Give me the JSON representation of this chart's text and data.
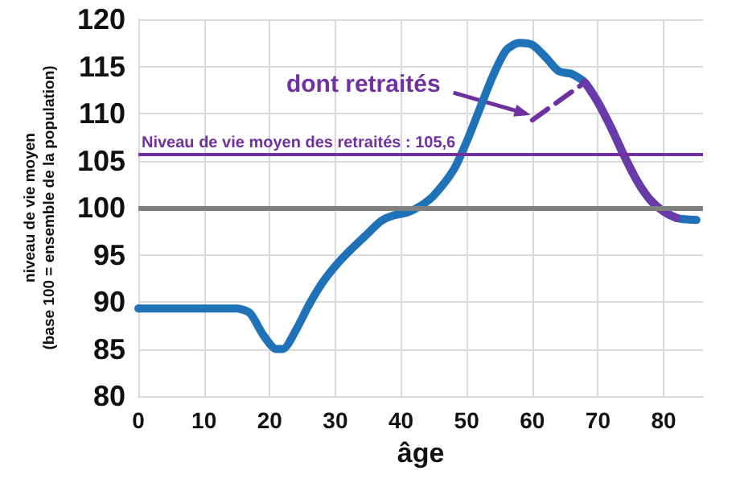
{
  "chart_data": {
    "type": "line",
    "xlabel": "âge",
    "ylabel": "niveau de vie moyen\n(base 100 = ensemble de la population)",
    "xlim": [
      0,
      86
    ],
    "xticks": [
      0,
      10,
      20,
      30,
      40,
      50,
      60,
      70,
      80
    ],
    "ylim": [
      80,
      120
    ],
    "yticks": [
      80,
      85,
      90,
      95,
      100,
      105,
      110,
      115,
      120
    ],
    "grid": true,
    "marker": "none",
    "series": [
      {
        "color": "#1f72b8",
        "line_style": "solid",
        "x": [
          0,
          5,
          10,
          15,
          17,
          19,
          21,
          22,
          24,
          26,
          28,
          30,
          32,
          35,
          37,
          39,
          41,
          43,
          45,
          48,
          50,
          52,
          54,
          56,
          58,
          60,
          62,
          64,
          66,
          68,
          70,
          72,
          74,
          76,
          78,
          80,
          82,
          85
        ],
        "values": [
          89.3,
          89.3,
          89.3,
          89.3,
          88.8,
          86.5,
          85,
          85,
          87,
          89.7,
          92,
          93.8,
          95.3,
          97.3,
          98.6,
          99.2,
          99.5,
          100.2,
          101.3,
          104,
          107,
          110.5,
          114,
          116.7,
          117.5,
          117.3,
          116,
          114.5,
          114.2,
          113.3,
          111.2,
          108.5,
          105.5,
          102.8,
          100.8,
          99.6,
          98.9,
          98.7
        ]
      },
      {
        "color": "#7030a0",
        "line_style": "dashed",
        "x": [
          60,
          68
        ],
        "values": [
          109.3,
          113.3
        ]
      },
      {
        "color": "#6a3aa8",
        "line_style": "solid",
        "x": [
          68,
          70,
          72,
          74,
          76,
          78,
          80,
          82
        ],
        "values": [
          113.3,
          111.2,
          108.5,
          105.5,
          102.8,
          100.8,
          99.6,
          98.9
        ]
      }
    ],
    "ref_lines": [
      {
        "axis": "y",
        "value": 100,
        "color": "#808080"
      },
      {
        "axis": "y",
        "value": 105.6,
        "label": "Niveau de vie moyen des retraités : 105,6",
        "color": "#7030a0"
      }
    ],
    "annotations": [
      "dont retraités"
    ]
  }
}
